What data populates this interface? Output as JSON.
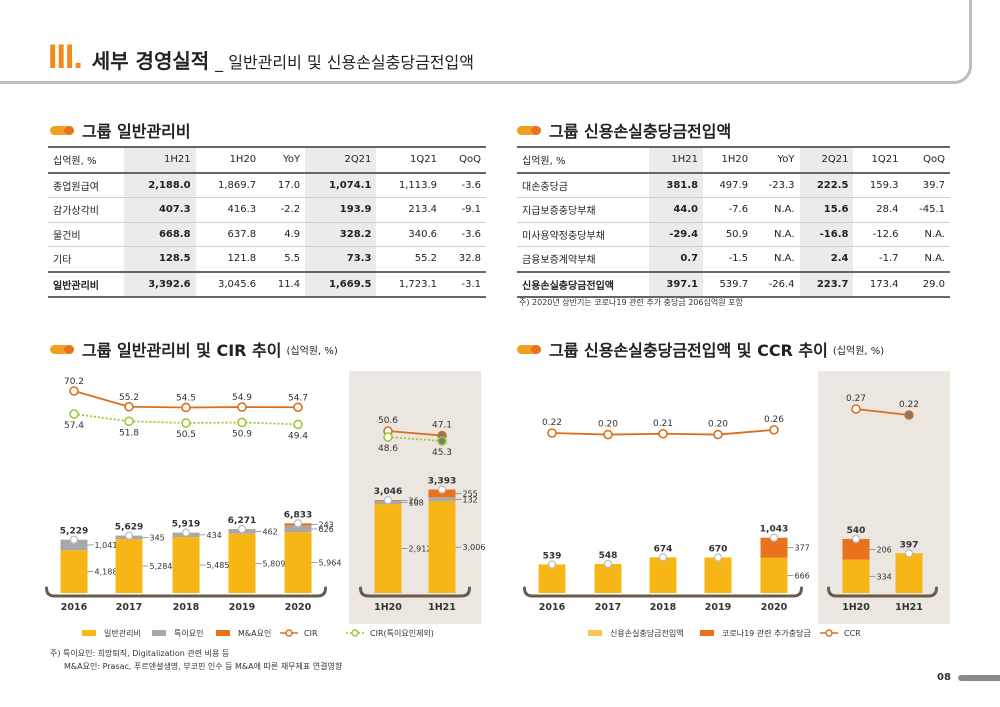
{
  "header": {
    "num": "III.",
    "title": "세부 경영실적",
    "subtitle": "_ 일반관리비 및 신용손실충당금전입액"
  },
  "sections": {
    "sga_table": "그룹 일반관리비",
    "credit_table": "그룹 신용손실충당금전입액",
    "sga_chart": "그룹 일반관리비 및 CIR 추이",
    "sga_chart_unit": "(십억원, %)",
    "credit_chart": "그룹 신용손실충당금전입액 및 CCR 추이",
    "credit_chart_unit": "(십억원, %)"
  },
  "sga_table": {
    "headers": [
      "십억원, %",
      "1H21",
      "1H20",
      "YoY",
      "2Q21",
      "1Q21",
      "QoQ"
    ],
    "rows": [
      [
        "종업원급여",
        "2,188.0",
        "1,869.7",
        "17.0",
        "1,074.1",
        "1,113.9",
        "-3.6"
      ],
      [
        "감가상각비",
        "407.3",
        "416.3",
        "-2.2",
        "193.9",
        "213.4",
        "-9.1"
      ],
      [
        "물건비",
        "668.8",
        "637.8",
        "4.9",
        "328.2",
        "340.6",
        "-3.6"
      ],
      [
        "기타",
        "128.5",
        "121.8",
        "5.5",
        "73.3",
        "55.2",
        "32.8"
      ]
    ],
    "total": [
      "일반관리비",
      "3,392.6",
      "3,045.6",
      "11.4",
      "1,669.5",
      "1,723.1",
      "-3.1"
    ]
  },
  "credit_table": {
    "headers": [
      "십억원, %",
      "1H21",
      "1H20",
      "YoY",
      "2Q21",
      "1Q21",
      "QoQ"
    ],
    "rows": [
      [
        "대손충당금",
        "381.8",
        "497.9",
        "-23.3",
        "222.5",
        "159.3",
        "39.7"
      ],
      [
        "지급보증충당부채",
        "44.0",
        "-7.6",
        "N.A.",
        "15.6",
        "28.4",
        "-45.1"
      ],
      [
        "미사용약정충당부채",
        "-29.4",
        "50.9",
        "N.A.",
        "-16.8",
        "-12.6",
        "N.A."
      ],
      [
        "금융보증계약부채",
        "0.7",
        "-1.5",
        "N.A.",
        "2.4",
        "-1.7",
        "N.A."
      ]
    ],
    "total": [
      "신용손실충당금전입액",
      "397.1",
      "539.7",
      "-26.4",
      "223.7",
      "173.4",
      "29.0"
    ],
    "note": "주) 2020년 상반기는 코로나19 관련 추가 충당금 206십억원 포함"
  },
  "colors": {
    "orange_main": "#f7b516",
    "orange_dark": "#e8731c",
    "gray": "#a8a8a8",
    "line": "#d9701e",
    "dotted_green": "#9ac93a",
    "panel": "#ebe6e0"
  },
  "chart_data": [
    {
      "type": "bar",
      "stacked": true,
      "categories": [
        "2016",
        "2017",
        "2018",
        "2019",
        "2020"
      ],
      "series": [
        {
          "name": "일반관리비",
          "values": [
            4188,
            5284,
            5485,
            5809,
            5964
          ]
        },
        {
          "name": "특이요인",
          "values": [
            1041,
            345,
            434,
            462,
            626
          ]
        },
        {
          "name": "M&A요인",
          "values": [
            null,
            null,
            null,
            null,
            243
          ]
        }
      ],
      "totals": [
        5229,
        5629,
        5919,
        6271,
        6833
      ],
      "lines": [
        {
          "name": "CIR",
          "values": [
            70.2,
            55.2,
            54.5,
            54.9,
            54.7
          ]
        },
        {
          "name": "CIR(특이요인제외)",
          "values": [
            57.4,
            51.8,
            50.5,
            50.9,
            49.4
          ]
        }
      ]
    },
    {
      "type": "bar",
      "stacked": true,
      "categories": [
        "1H20",
        "1H21"
      ],
      "series": [
        {
          "name": "일반관리비",
          "values": [
            2912,
            3006
          ]
        },
        {
          "name": "특이요인",
          "values": [
            108,
            132
          ]
        },
        {
          "name": "M&A요인",
          "values": [
            26,
            255
          ]
        }
      ],
      "totals": [
        3046,
        3393
      ],
      "lines": [
        {
          "name": "CIR",
          "values": [
            50.6,
            47.1
          ]
        },
        {
          "name": "CIR(특이요인제외)",
          "values": [
            48.6,
            45.3
          ]
        }
      ]
    },
    {
      "type": "bar",
      "stacked": true,
      "categories": [
        "2016",
        "2017",
        "2018",
        "2019",
        "2020"
      ],
      "series": [
        {
          "name": "신용손실충당금전입액",
          "values": [
            539,
            548,
            674,
            670,
            666
          ]
        },
        {
          "name": "코로나19 관련 추가충당금",
          "values": [
            null,
            null,
            null,
            null,
            377
          ]
        }
      ],
      "totals": [
        539,
        548,
        674,
        670,
        1043
      ],
      "lines": [
        {
          "name": "CCR",
          "values": [
            0.22,
            0.2,
            0.21,
            0.2,
            0.26
          ]
        }
      ]
    },
    {
      "type": "bar",
      "stacked": true,
      "categories": [
        "1H20",
        "1H21"
      ],
      "series": [
        {
          "name": "신용손실충당금전입액",
          "values": [
            334,
            397
          ]
        },
        {
          "name": "코로나19 관련 추가충당금",
          "values": [
            206,
            null
          ]
        }
      ],
      "totals": [
        540,
        397
      ],
      "lines": [
        {
          "name": "CCR",
          "values": [
            0.27,
            0.22
          ]
        }
      ]
    }
  ],
  "legend_left": [
    "일반관리비",
    "특이요인",
    "M&A요인",
    "CIR",
    "CIR(특이요인제외)"
  ],
  "legend_right": [
    "신용손실충당금전입액",
    "코로나19 관련 추가충당금",
    "CCR"
  ],
  "footnotes": {
    "line1": "주) 특이요인: 희망퇴직, Digitalization 관련 비용 등",
    "line2": "M&A요인: Prasac, 푸르덴셜생명, 부코핀 인수 등 M&A에 따른 재무제표 연결영향"
  },
  "page_number": "08"
}
